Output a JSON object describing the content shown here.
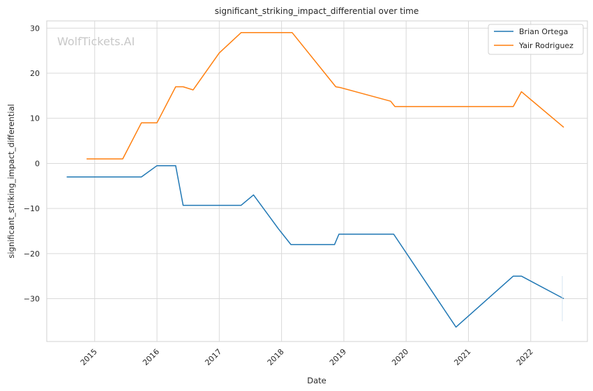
{
  "chart_data": {
    "type": "line",
    "title": "significant_striking_impact_differential over time",
    "xlabel": "Date",
    "ylabel": "significant_striking_impact_differential",
    "watermark": "WolfTickets.AI",
    "xlim": [
      2014.23,
      2022.91
    ],
    "ylim": [
      -39.5,
      31.6
    ],
    "x_ticks": [
      2015,
      2016,
      2017,
      2018,
      2019,
      2020,
      2021,
      2022
    ],
    "x_tick_labels": [
      "2015",
      "2016",
      "2017",
      "2018",
      "2019",
      "2020",
      "2021",
      "2022"
    ],
    "y_ticks": [
      30,
      20,
      10,
      0,
      -10,
      -20,
      -30
    ],
    "y_tick_labels": [
      "30",
      "20",
      "10",
      "0",
      "−10",
      "−20",
      "−30"
    ],
    "grid": true,
    "legend_position": "top-right",
    "series": [
      {
        "name": "Brian Ortega",
        "color": "#1f77b4",
        "points": [
          [
            2014.55,
            -3
          ],
          [
            2015.75,
            -3
          ],
          [
            2016.0,
            -0.5
          ],
          [
            2016.3,
            -0.5
          ],
          [
            2016.42,
            -9.3
          ],
          [
            2017.35,
            -9.3
          ],
          [
            2017.55,
            -7
          ],
          [
            2017.95,
            -14.5
          ],
          [
            2018.15,
            -18
          ],
          [
            2018.85,
            -18
          ],
          [
            2018.92,
            -15.7
          ],
          [
            2019.8,
            -15.7
          ],
          [
            2020.8,
            -36.3
          ],
          [
            2021.72,
            -25
          ],
          [
            2021.85,
            -25
          ],
          [
            2022.53,
            -30
          ]
        ]
      },
      {
        "name": "Yair Rodriguez",
        "color": "#ff7f0e",
        "points": [
          [
            2014.87,
            1
          ],
          [
            2015.45,
            1
          ],
          [
            2015.75,
            9
          ],
          [
            2016.0,
            9
          ],
          [
            2016.3,
            17
          ],
          [
            2016.42,
            17
          ],
          [
            2016.58,
            16.3
          ],
          [
            2017.0,
            24.5
          ],
          [
            2017.35,
            29
          ],
          [
            2018.17,
            29
          ],
          [
            2018.87,
            17
          ],
          [
            2018.95,
            16.8
          ],
          [
            2019.75,
            13.8
          ],
          [
            2019.82,
            12.6
          ],
          [
            2021.72,
            12.6
          ],
          [
            2021.85,
            15.9
          ],
          [
            2022.53,
            8
          ]
        ]
      }
    ]
  }
}
